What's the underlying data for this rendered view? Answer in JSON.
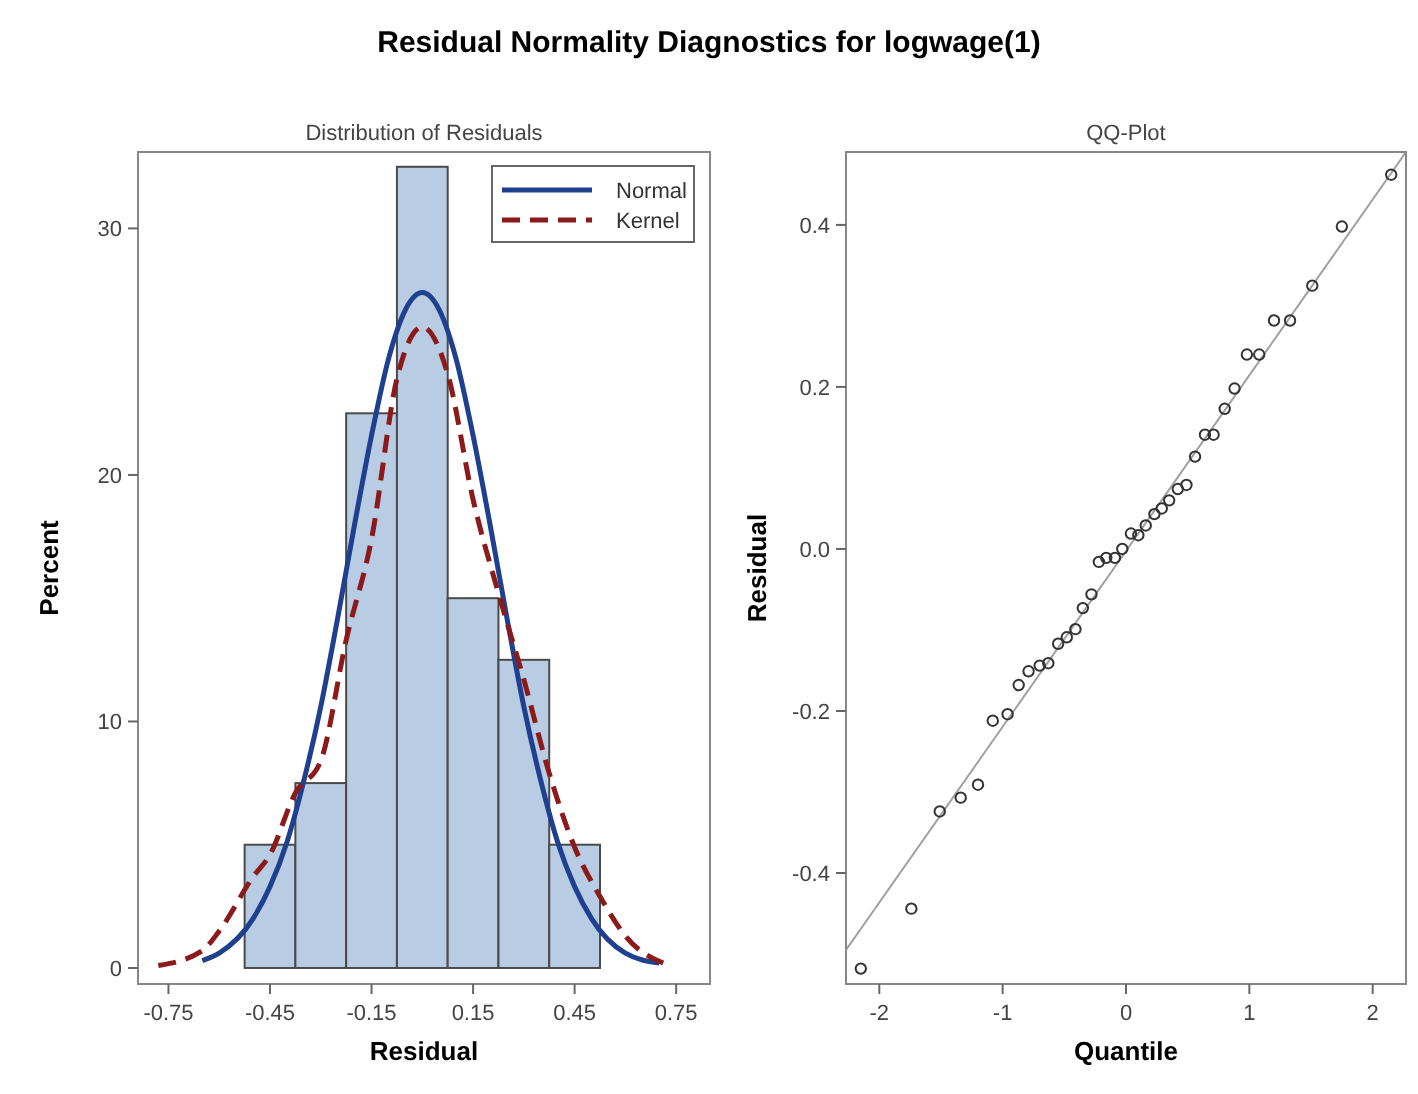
{
  "chart_data": [
    {
      "type": "histogram",
      "title": "Residual Normality Diagnostics for logwage(1)",
      "subtitle": "Distribution of Residuals",
      "xlabel": "Residual",
      "ylabel": "Percent",
      "bins": [
        -0.525,
        -0.375,
        -0.225,
        -0.075,
        0.075,
        0.225,
        0.375,
        0.525
      ],
      "values": [
        5,
        7.5,
        22.5,
        32.5,
        15,
        12.5,
        5
      ],
      "color": "#b8cce4",
      "series": [
        {
          "type": "line",
          "name": "Normal",
          "color": "#1f3f8f",
          "line_style": "solid",
          "x": [
            -0.65,
            -0.6,
            -0.5,
            -0.45,
            -0.4,
            -0.35,
            -0.3,
            -0.25,
            -0.2,
            -0.15,
            -0.1,
            -0.05,
            0,
            0.05,
            0.1,
            0.15,
            0.2,
            0.25,
            0.3,
            0.35,
            0.4,
            0.45,
            0.5,
            0.6,
            0.7
          ],
          "values": [
            0.3,
            0.6,
            2,
            3.3,
            5.1,
            7.6,
            10.6,
            14.2,
            18,
            21.6,
            24.7,
            26.7,
            27.4,
            26.7,
            24.7,
            21.6,
            18,
            14.2,
            10.6,
            7.6,
            5.1,
            3.3,
            2,
            0.6,
            0.2
          ]
        },
        {
          "type": "line",
          "name": "Kernel",
          "color": "#8b1a1a",
          "line_style": "dashed",
          "x": [
            -0.78,
            -0.65,
            -0.6,
            -0.5,
            -0.45,
            -0.375,
            -0.3,
            -0.225,
            -0.15,
            -0.075,
            0,
            0.075,
            0.15,
            0.225,
            0.3,
            0.375,
            0.45,
            0.525,
            0.6,
            0.73
          ],
          "values": [
            0.1,
            0.7,
            1.5,
            3.7,
            4.6,
            7.1,
            8.4,
            13.3,
            17.4,
            23.9,
            26,
            24.1,
            19,
            15.2,
            11.7,
            7.9,
            4.9,
            2.9,
            1.3,
            0.1
          ]
        }
      ],
      "xlim": [
        -0.84,
        0.85
      ],
      "xticks": [
        -0.75,
        -0.45,
        -0.15,
        0.15,
        0.45,
        0.75
      ],
      "ylim": [
        -0.65,
        33.1
      ],
      "yticks": [
        0,
        10,
        20,
        30
      ],
      "grid": false,
      "legend": "top right"
    },
    {
      "type": "scatter",
      "title": "QQ-Plot",
      "xlabel": "Quantile",
      "ylabel": "Residual",
      "grid": false,
      "series": [
        {
          "type": "scatter",
          "color": "#333333",
          "marker": "circle",
          "x": [
            -2.15,
            -1.74,
            -1.51,
            -1.34,
            -1.2,
            -1.08,
            -0.96,
            -0.87,
            -0.79,
            -0.7,
            -0.63,
            -0.55,
            -0.48,
            -0.41,
            -0.35,
            -0.28,
            -0.22,
            -0.16,
            -0.09,
            -0.03,
            0.04,
            0.1,
            0.16,
            0.23,
            0.29,
            0.35,
            0.42,
            0.49,
            0.56,
            0.64,
            0.71,
            0.8,
            0.88,
            0.98,
            1.08,
            1.2,
            1.33,
            1.51,
            1.75,
            2.15
          ],
          "values": [
            -0.518,
            -0.444,
            -0.324,
            -0.307,
            -0.291,
            -0.212,
            -0.204,
            -0.168,
            -0.151,
            -0.144,
            -0.141,
            -0.117,
            -0.109,
            -0.099,
            -0.073,
            -0.056,
            -0.016,
            -0.011,
            -0.011,
            0,
            0.019,
            0.017,
            0.029,
            0.043,
            0.05,
            0.06,
            0.074,
            0.079,
            0.114,
            0.141,
            0.141,
            0.173,
            0.198,
            0.24,
            0.24,
            0.282,
            0.282,
            0.325,
            0.398,
            0.462
          ]
        },
        {
          "type": "line",
          "color": "#a0a0a0",
          "x": [
            -2.27,
            2.27
          ],
          "values": [
            -0.495,
            0.49
          ]
        }
      ],
      "xlim": [
        -2.27,
        2.27
      ],
      "xticks": [
        -2,
        -1,
        0,
        1,
        2
      ],
      "ylim": [
        -0.537,
        0.49
      ],
      "yticks": [
        {
          "value": 0.4,
          "label": "0.4"
        },
        {
          "value": 0.2,
          "label": "0.2"
        },
        {
          "value": 0,
          "label": "0.0"
        },
        {
          "value": -0.2,
          "label": "-0.2"
        },
        {
          "value": -0.4,
          "label": "-0.4"
        }
      ]
    }
  ]
}
